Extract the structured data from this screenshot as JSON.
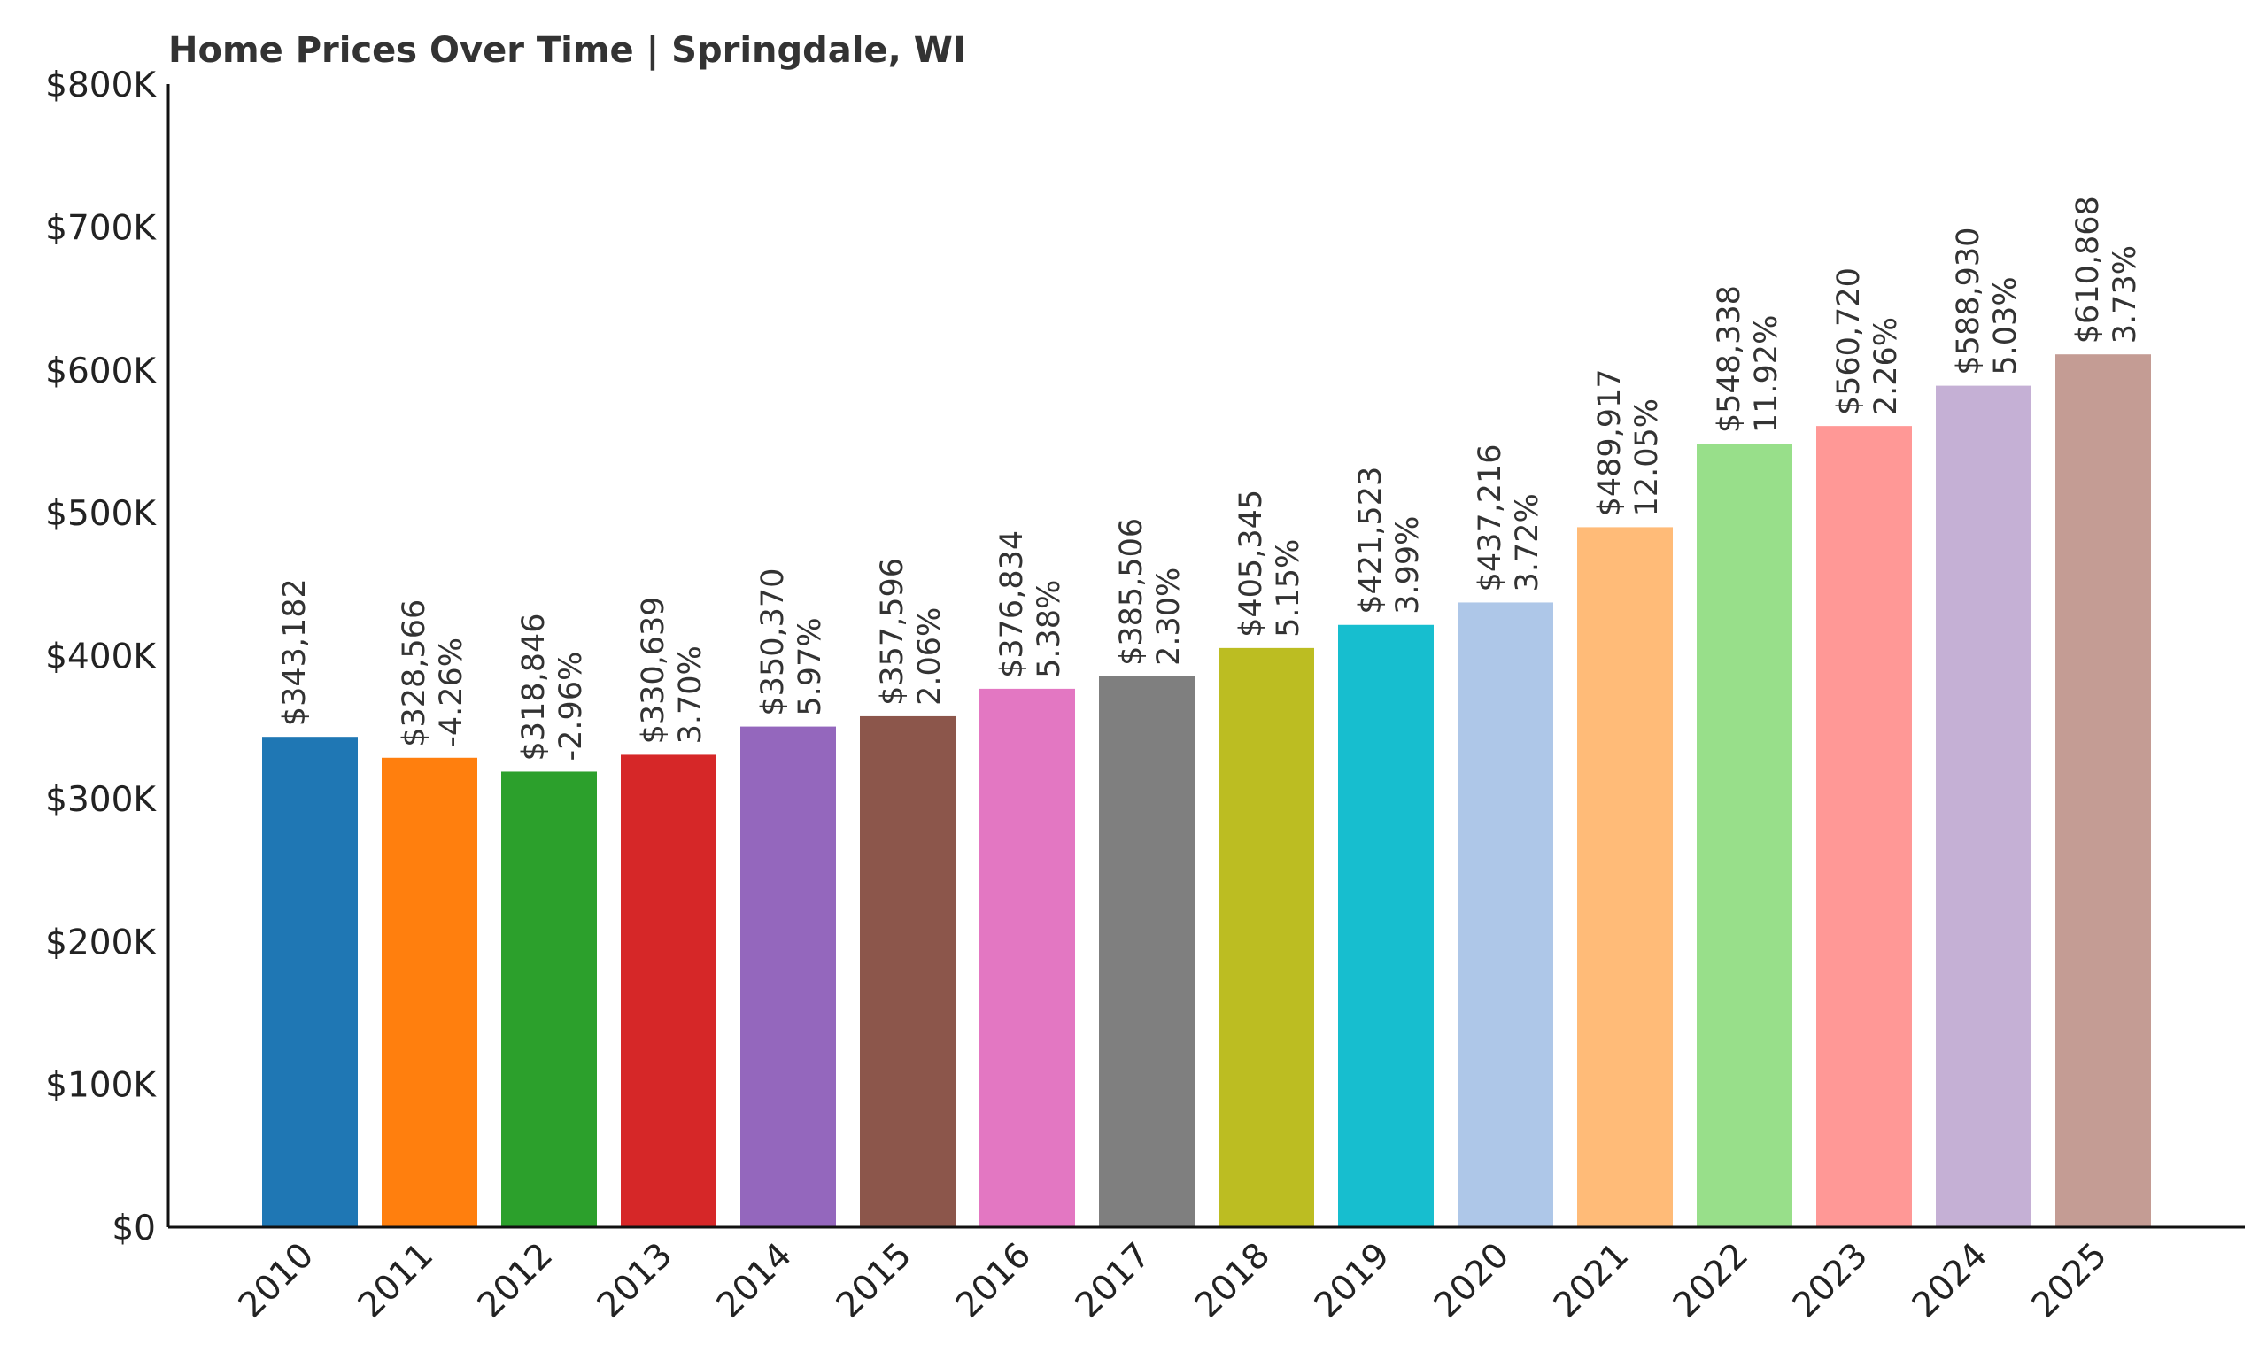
{
  "chart_data": {
    "type": "bar",
    "title": "Home Prices Over Time | Springdale, WI",
    "xlabel": "",
    "ylabel": "",
    "ylim": [
      0,
      800000
    ],
    "grid": false,
    "legend": "none",
    "y_ticks": [
      {
        "value": 0,
        "label": "$0"
      },
      {
        "value": 100000,
        "label": "$100K"
      },
      {
        "value": 200000,
        "label": "$200K"
      },
      {
        "value": 300000,
        "label": "$300K"
      },
      {
        "value": 400000,
        "label": "$400K"
      },
      {
        "value": 500000,
        "label": "$500K"
      },
      {
        "value": 600000,
        "label": "$600K"
      },
      {
        "value": 700000,
        "label": "$700K"
      },
      {
        "value": 800000,
        "label": "$800K"
      }
    ],
    "categories": [
      "2010",
      "2011",
      "2012",
      "2013",
      "2014",
      "2015",
      "2016",
      "2017",
      "2018",
      "2019",
      "2020",
      "2021",
      "2022",
      "2023",
      "2024",
      "2025"
    ],
    "values": [
      343182,
      328566,
      318846,
      330639,
      350370,
      357596,
      376834,
      385506,
      405345,
      421523,
      437216,
      489917,
      548338,
      560720,
      588930,
      610868
    ],
    "value_labels": [
      "$343,182",
      "$328,566",
      "$318,846",
      "$330,639",
      "$350,370",
      "$357,596",
      "$376,834",
      "$385,506",
      "$405,345",
      "$421,523",
      "$437,216",
      "$489,917",
      "$548,338",
      "$560,720",
      "$588,930",
      "$610,868"
    ],
    "change_labels": [
      "",
      "-4.26%",
      "-2.96%",
      "3.70%",
      "5.97%",
      "2.06%",
      "5.38%",
      "2.30%",
      "5.15%",
      "3.99%",
      "3.72%",
      "12.05%",
      "11.92%",
      "2.26%",
      "5.03%",
      "3.73%"
    ],
    "colors": [
      "#1f77b4",
      "#ff7f0e",
      "#2ca02c",
      "#d62728",
      "#9467bd",
      "#8c564b",
      "#e377c2",
      "#7f7f7f",
      "#bcbd22",
      "#17becf",
      "#aec7e8",
      "#ffbb78",
      "#98df8a",
      "#ff9896",
      "#c5b0d5",
      "#c49c94"
    ]
  }
}
